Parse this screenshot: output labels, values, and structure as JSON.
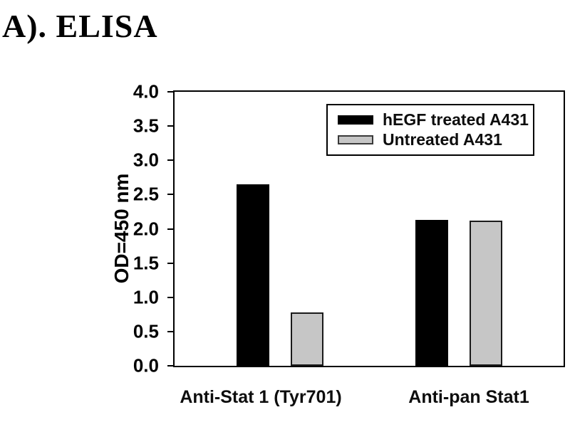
{
  "figure": {
    "panel_label": "A). ELISA"
  },
  "colors": {
    "series_hegf": "#000000",
    "series_untreated": "#c6c6c6",
    "gray_bar_border": "#1a1a1a",
    "axis": "#000000",
    "background": "#ffffff"
  },
  "chart_data": {
    "type": "bar",
    "title": "A). ELISA",
    "categories": [
      "Anti-Stat 1 (Tyr701)",
      "Anti-pan Stat1"
    ],
    "series": [
      {
        "name": "hEGF treated A431",
        "color": "#000000",
        "border_color": "#000000",
        "values": [
          2.65,
          2.13
        ]
      },
      {
        "name": "Untreated A431",
        "color": "#c6c6c6",
        "border_color": "#1a1a1a",
        "values": [
          0.78,
          2.12
        ]
      }
    ],
    "xlabel": "",
    "ylabel": "OD=450 nm",
    "ylim": [
      0.0,
      4.0
    ],
    "yticks": [
      4.0,
      3.5,
      3.0,
      2.5,
      2.0,
      1.5,
      1.0,
      0.5,
      0.0
    ],
    "ytick_labels": [
      "4.0",
      "3.5",
      "3.0",
      "2.5",
      "2.0",
      "1.5",
      "1.0",
      "0.5",
      "0.0"
    ],
    "grid": false,
    "legend_position": "upper-right-inside"
  }
}
